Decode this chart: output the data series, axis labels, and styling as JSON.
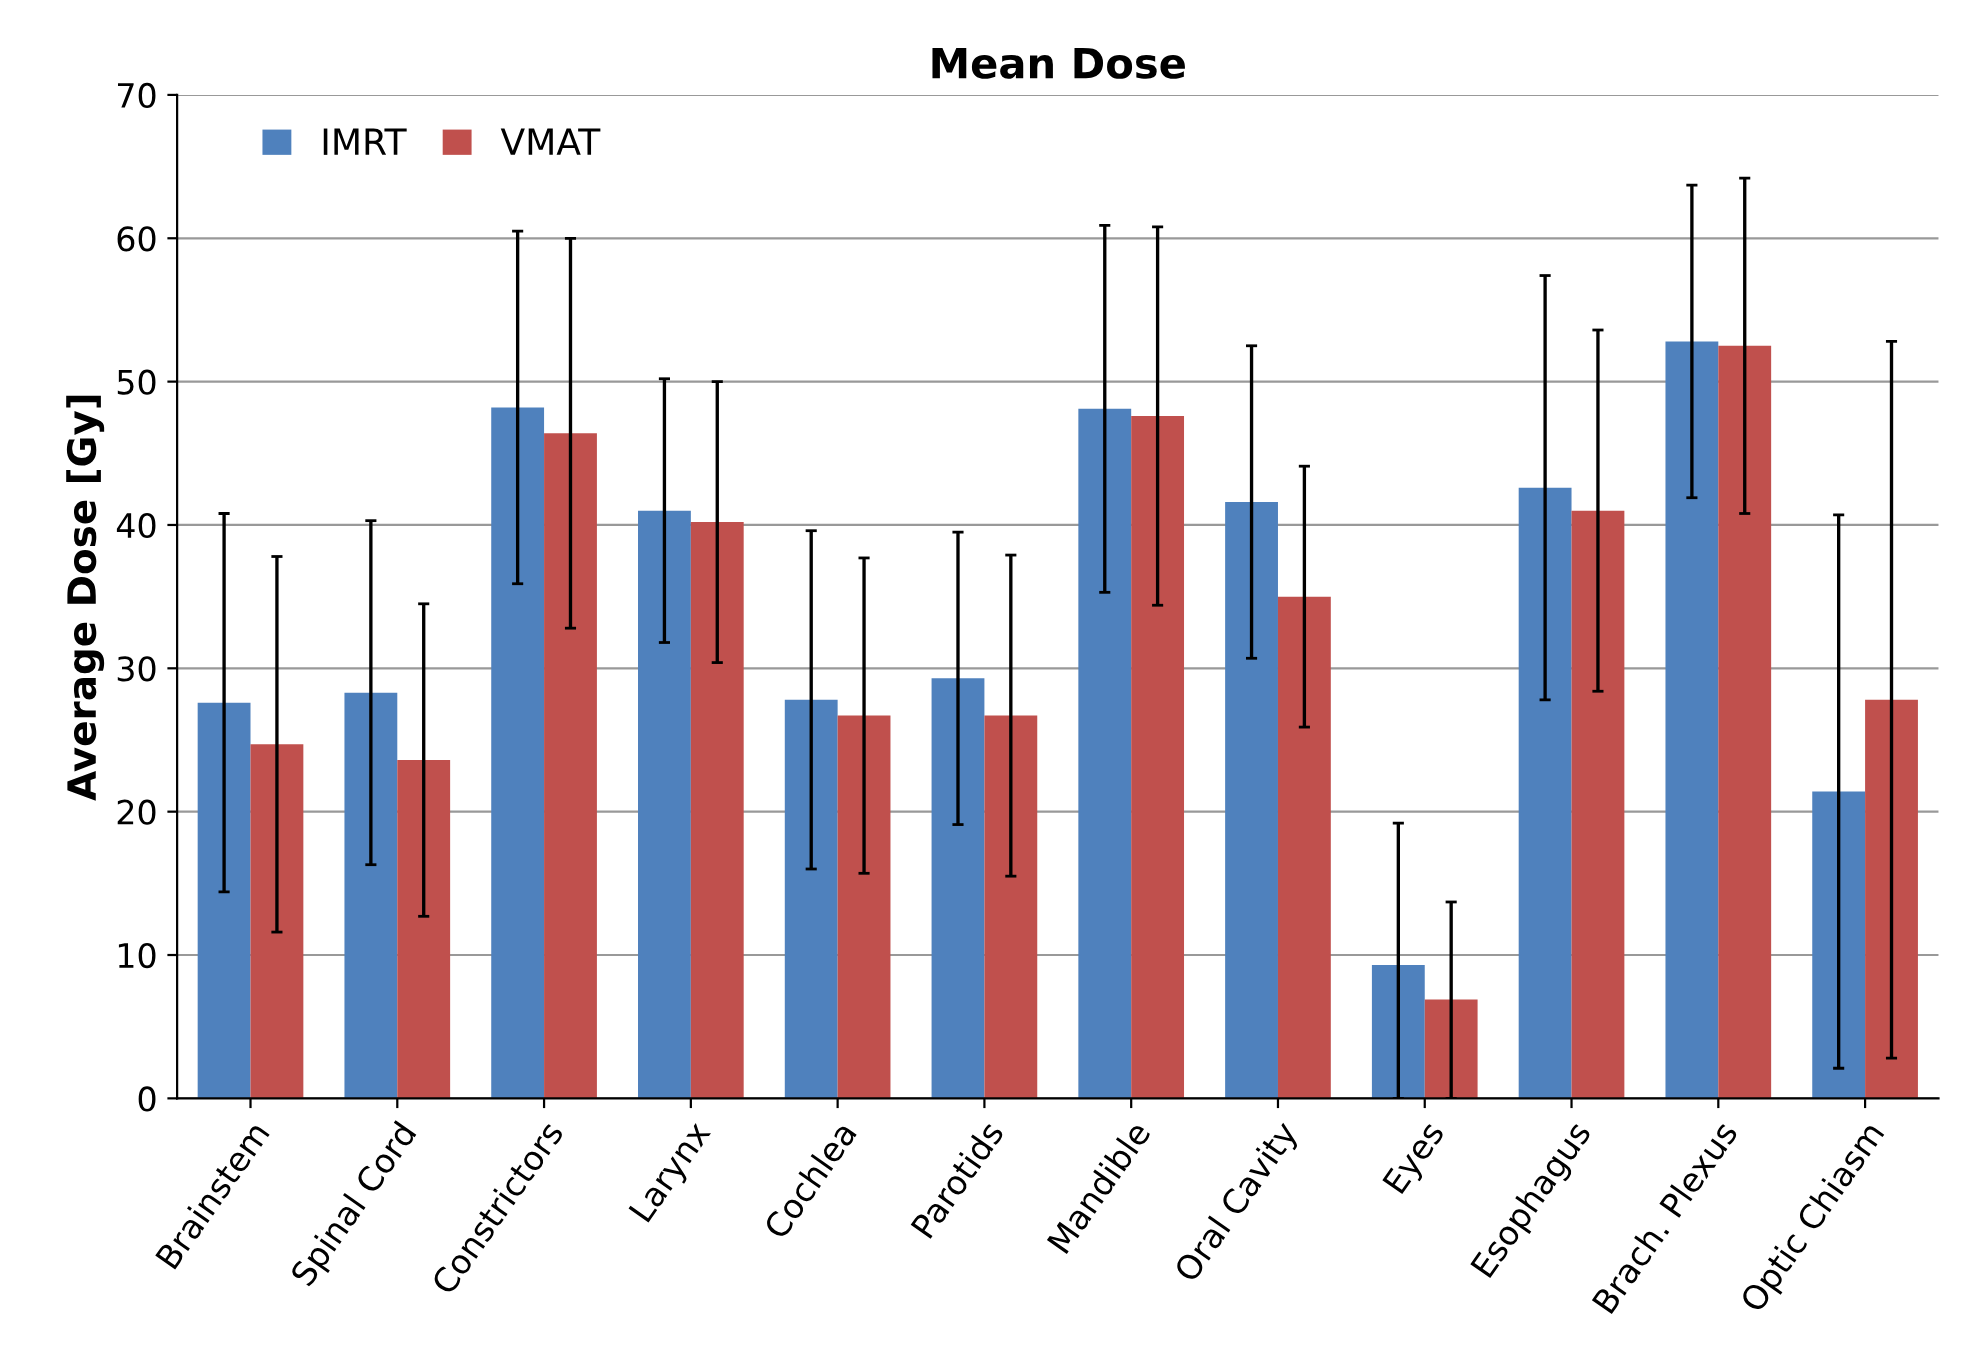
{
  "chart_data": {
    "type": "bar",
    "title": "Mean Dose",
    "ylabel": "Average Dose [Gy]",
    "categories": [
      "Brainstem",
      "Spinal Cord",
      "Constrictors",
      "Larynx",
      "Cochlea",
      "Parotids",
      "Mandible",
      "Oral Cavity",
      "Eyes",
      "Esophagus",
      "Brach. Plexus",
      "Optic Chiasm"
    ],
    "series": [
      {
        "name": "IMRT",
        "color": "#4f81bd",
        "values": [
          27.6,
          28.3,
          48.2,
          41.0,
          27.8,
          29.3,
          48.1,
          41.6,
          9.3,
          42.6,
          52.8,
          21.4
        ],
        "errors": [
          13.2,
          12.0,
          12.3,
          9.2,
          11.8,
          10.2,
          12.8,
          10.9,
          [
            0,
            19.2
          ],
          14.8,
          10.9,
          19.3
        ]
      },
      {
        "name": "VMAT",
        "color": "#c0504d",
        "values": [
          24.7,
          23.6,
          46.4,
          40.2,
          26.7,
          26.7,
          47.6,
          35.0,
          6.9,
          41.0,
          52.5,
          27.8
        ],
        "errors": [
          13.1,
          10.9,
          13.6,
          9.8,
          11.0,
          11.2,
          13.2,
          9.1,
          [
            0,
            13.7
          ],
          12.6,
          11.7,
          25.0
        ]
      }
    ],
    "ylim": [
      0,
      70
    ],
    "yticks": [
      0,
      10,
      20,
      30,
      40,
      50,
      60,
      70
    ],
    "grid": "y",
    "legend": "top left"
  }
}
